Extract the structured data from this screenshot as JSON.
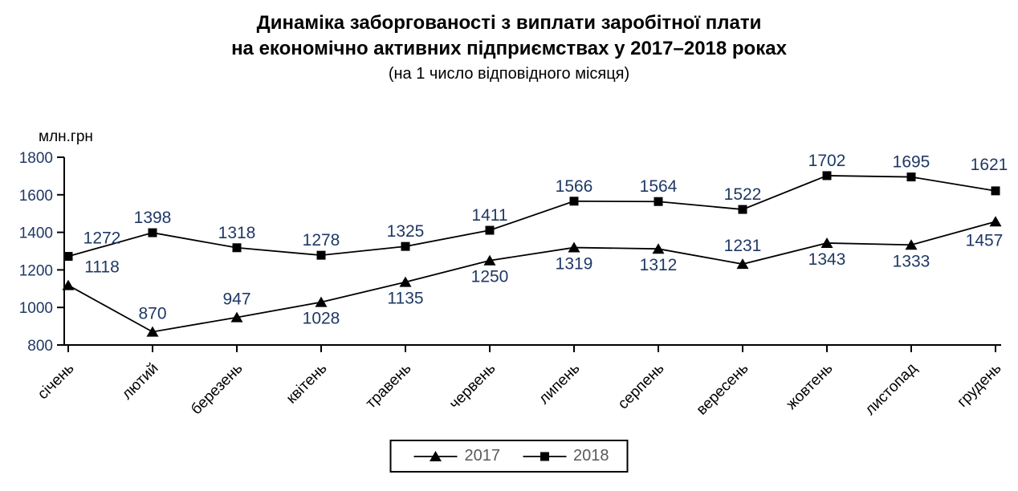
{
  "chart_data": {
    "type": "line",
    "title": [
      "Динаміка заборгованості з виплати заробітної плати",
      "на економічно активних підприємствах у 2017–2018 роках"
    ],
    "subtitle": "(на 1 число відповідного місяця)",
    "ylabel": "млн.грн",
    "categories": [
      "січень",
      "лютий",
      "березень",
      "квітень",
      "травень",
      "червень",
      "липень",
      "серпень",
      "вересень",
      "жовтень",
      "листопад",
      "грудень"
    ],
    "series": [
      {
        "name": "2017",
        "marker": "triangle",
        "values": [
          1118,
          870,
          947,
          1028,
          1135,
          1250,
          1319,
          1312,
          1231,
          1343,
          1333,
          1457
        ],
        "label_side": [
          "above-right",
          "above",
          "above",
          "below",
          "below",
          "below",
          "below",
          "below",
          "above",
          "below",
          "below",
          "below-left"
        ]
      },
      {
        "name": "2018",
        "marker": "square",
        "values": [
          1272,
          1398,
          1318,
          1278,
          1325,
          1411,
          1566,
          1564,
          1522,
          1702,
          1695,
          1621
        ],
        "label_side": [
          "above-right",
          "above",
          "above",
          "above",
          "above",
          "above",
          "above",
          "above",
          "above",
          "above",
          "above",
          "above-far"
        ]
      }
    ],
    "ylim": [
      800,
      1800
    ],
    "yticks": [
      800,
      1000,
      1200,
      1400,
      1600,
      1800
    ],
    "grid": false,
    "legend_position": "bottom",
    "colors": {
      "series_line": "#000000",
      "marker": "#000000",
      "axis": "#000000",
      "data_label": "#1f3864",
      "tick_label": "#1f3864",
      "month_label": "#000000",
      "legend_text": "#595959",
      "background": "#ffffff"
    }
  }
}
